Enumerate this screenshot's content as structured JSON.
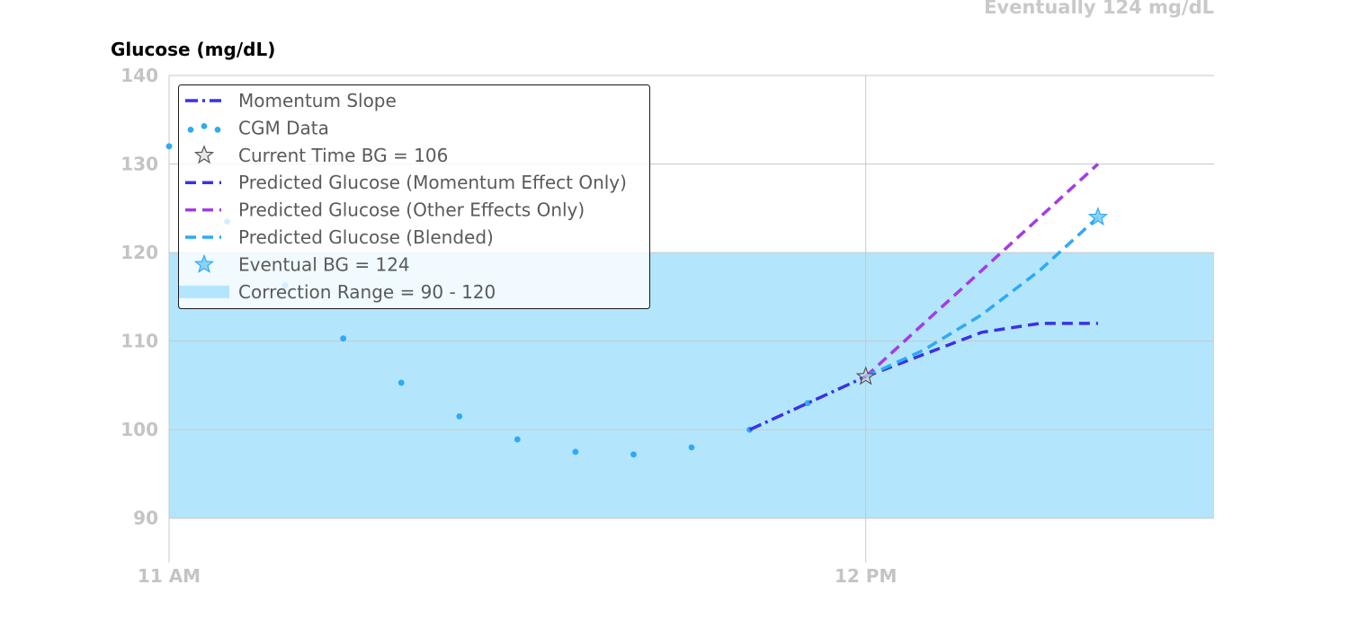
{
  "chart_data": {
    "type": "line",
    "title": "",
    "top_note": "Eventually 124 mg/dL",
    "ylabel": "Glucose (mg/dL)",
    "xlabel": "",
    "ylim": [
      85,
      140
    ],
    "yticks": [
      90,
      100,
      110,
      120,
      130,
      140
    ],
    "xlim": [
      "11:00",
      "12:30"
    ],
    "xticks": [
      {
        "time": "11:00",
        "label": "11 AM"
      },
      {
        "time": "12:00",
        "label": "12 PM"
      }
    ],
    "grid": true,
    "legend_position": "top-left",
    "correction_range": {
      "min": 90,
      "max": 120,
      "color": "#b3e6fc",
      "legend_label": "Correction Range = 90 - 120"
    },
    "series": [
      {
        "name": "Momentum Slope",
        "style": "dashdot",
        "color": "#3b30e8",
        "points": [
          [
            "11:50",
            100
          ],
          [
            "12:00",
            106
          ]
        ]
      },
      {
        "name": "CGM Data",
        "style": "dots",
        "color": "#2eaaf5",
        "points": [
          [
            "11:00",
            132
          ],
          [
            "11:05",
            123.5
          ],
          [
            "11:10",
            116.3
          ],
          [
            "11:15",
            110.3
          ],
          [
            "11:20",
            105.3
          ],
          [
            "11:25",
            101.5
          ],
          [
            "11:30",
            98.9
          ],
          [
            "11:35",
            97.5
          ],
          [
            "11:40",
            97.2
          ],
          [
            "11:45",
            98
          ],
          [
            "11:50",
            100
          ],
          [
            "11:55",
            103
          ]
        ]
      },
      {
        "name": "Current Time BG =  106",
        "style": "marker-star",
        "color": "#d9d9d9",
        "points": [
          [
            "12:00",
            106
          ]
        ]
      },
      {
        "name": "Predicted Glucose (Momentum Effect Only)",
        "style": "dashed",
        "color": "#3b30e8",
        "points": [
          [
            "12:00",
            106
          ],
          [
            "12:05",
            108.5
          ],
          [
            "12:10",
            111
          ],
          [
            "12:15",
            112
          ],
          [
            "12:20",
            112
          ]
        ]
      },
      {
        "name": "Predicted Glucose (Other Effects Only)",
        "style": "dashed",
        "color": "#a43be8",
        "points": [
          [
            "12:00",
            106
          ],
          [
            "12:05",
            112
          ],
          [
            "12:10",
            118
          ],
          [
            "12:15",
            124
          ],
          [
            "12:20",
            130
          ]
        ]
      },
      {
        "name": "Predicted Glucose (Blended)",
        "style": "dashed",
        "color": "#2eaaf5",
        "points": [
          [
            "12:00",
            106
          ],
          [
            "12:05",
            109
          ],
          [
            "12:10",
            113
          ],
          [
            "12:15",
            118
          ],
          [
            "12:20",
            124
          ]
        ]
      },
      {
        "name": "Eventual BG = 124",
        "style": "marker-star",
        "color": "#7fcdf7",
        "points": [
          [
            "12:20",
            124
          ]
        ]
      }
    ]
  }
}
